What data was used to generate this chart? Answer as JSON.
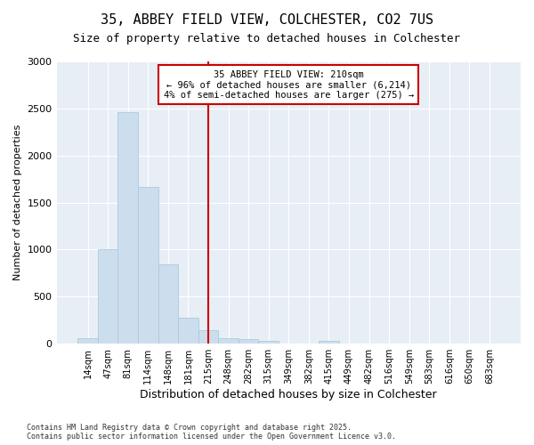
{
  "title1": "35, ABBEY FIELD VIEW, COLCHESTER, CO2 7US",
  "title2": "Size of property relative to detached houses in Colchester",
  "xlabel": "Distribution of detached houses by size in Colchester",
  "ylabel": "Number of detached properties",
  "bar_labels": [
    "14sqm",
    "47sqm",
    "81sqm",
    "114sqm",
    "148sqm",
    "181sqm",
    "215sqm",
    "248sqm",
    "282sqm",
    "315sqm",
    "349sqm",
    "382sqm",
    "415sqm",
    "449sqm",
    "482sqm",
    "516sqm",
    "549sqm",
    "583sqm",
    "616sqm",
    "650sqm",
    "683sqm"
  ],
  "bar_values": [
    55,
    1005,
    2460,
    1665,
    840,
    275,
    140,
    55,
    50,
    30,
    0,
    0,
    30,
    0,
    0,
    0,
    0,
    0,
    0,
    0,
    0
  ],
  "bar_color": "#ccdded",
  "bar_edgecolor": "#aaccdd",
  "annotation_title": "35 ABBEY FIELD VIEW: 210sqm",
  "annotation_line1": "← 96% of detached houses are smaller (6,214)",
  "annotation_line2": "4% of semi-detached houses are larger (275) →",
  "annotation_box_edgecolor": "#cc0000",
  "vline_color": "#cc0000",
  "vline_x_index": 6,
  "ylim": [
    0,
    3000
  ],
  "yticks": [
    0,
    500,
    1000,
    1500,
    2000,
    2500,
    3000
  ],
  "footer_line1": "Contains HM Land Registry data © Crown copyright and database right 2025.",
  "footer_line2": "Contains public sector information licensed under the Open Government Licence v3.0.",
  "background_color": "#ffffff",
  "plot_background_color": "#e8eef5",
  "grid_color": "#ffffff",
  "title_fontsize": 11,
  "subtitle_fontsize": 9,
  "xlabel_fontsize": 9,
  "ylabel_fontsize": 8
}
